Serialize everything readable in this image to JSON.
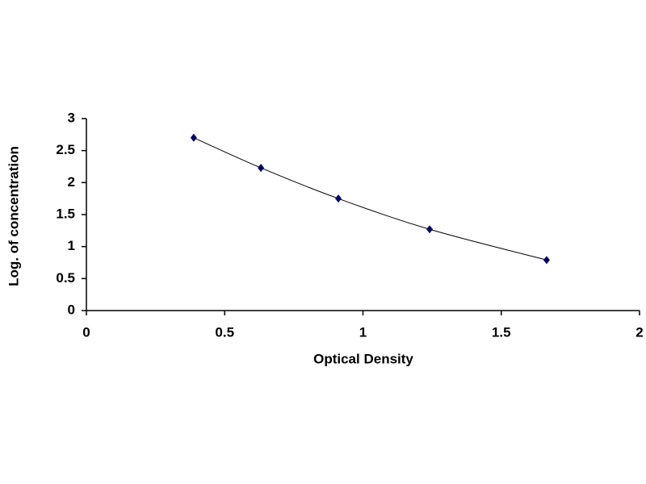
{
  "chart_data": {
    "type": "scatter",
    "x_label": "Optical Density",
    "y_label": "Log. of concentration",
    "series": [
      {
        "color": "#000066",
        "line_color": "#000000",
        "x": [
          0.388,
          0.631,
          0.911,
          1.241,
          1.664
        ],
        "values": [
          2.7,
          2.23,
          1.75,
          1.27,
          0.79
        ]
      }
    ],
    "xlim": [
      0,
      2
    ],
    "xticks": [
      0,
      0.5,
      1,
      1.5,
      2
    ],
    "ylim": [
      0,
      3
    ],
    "yticks": [
      0,
      0.5,
      1,
      1.5,
      2,
      2.5,
      3
    ],
    "grid": false,
    "smooth_line": true
  }
}
